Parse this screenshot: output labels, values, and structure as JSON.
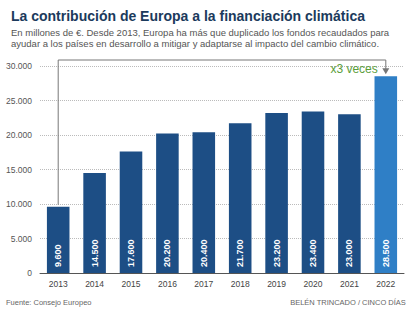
{
  "chart_data": {
    "type": "bar",
    "title": "La contribución de Europa a la financiación climática",
    "subtitle": "En millones de €. Desde 2013, Europa ha más que duplicado los fondos recaudados para ayudar a los países en desarrollo a mitigar y adaptarse al impacto del cambio climático.",
    "annotation": "x3 veces",
    "source": "Fuente: Consejo Europeo",
    "credit": "BELÉN TRINCADO / CINCO DÍAS",
    "categories": [
      "2013",
      "2014",
      "2015",
      "2016",
      "2017",
      "2018",
      "2019",
      "2020",
      "2021",
      "2022"
    ],
    "values": [
      9600,
      14500,
      17600,
      20200,
      20400,
      21700,
      23200,
      23400,
      23000,
      28500
    ],
    "value_labels": [
      "9.600",
      "14.500",
      "17.600",
      "20.200",
      "20.400",
      "21.700",
      "23.200",
      "23.400",
      "23.000",
      "28.500"
    ],
    "colors": [
      "#1d4e85",
      "#1d4e85",
      "#1d4e85",
      "#1d4e85",
      "#1d4e85",
      "#1d4e85",
      "#1d4e85",
      "#1d4e85",
      "#1d4e85",
      "#2f7fc6"
    ],
    "ylim": [
      0,
      30000
    ],
    "yticks": [
      0,
      {
        "value": 5000,
        "label": "5.000"
      },
      {
        "value": 10000,
        "label": "10.000"
      },
      {
        "value": 15000,
        "label": "15.000"
      },
      {
        "value": 20000,
        "label": "20.000"
      },
      {
        "value": 25000,
        "label": "25.000"
      },
      {
        "value": 30000,
        "label": "30.000"
      }
    ],
    "grid": true,
    "data_labels": true
  }
}
